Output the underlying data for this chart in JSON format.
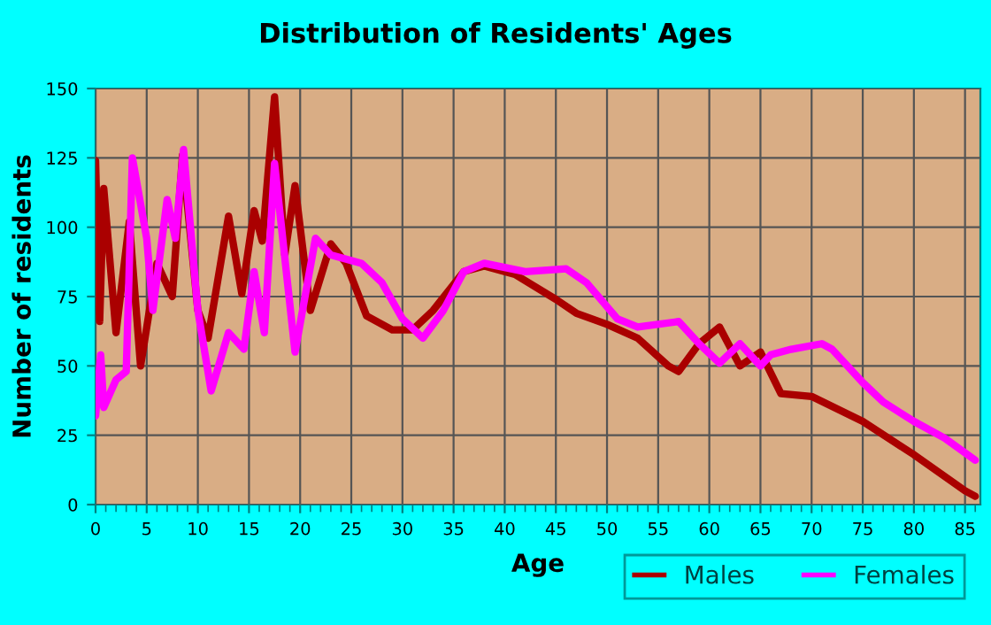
{
  "chart_data": {
    "type": "line",
    "title": "Distribution of Residents' Ages",
    "xlabel": "Age",
    "ylabel": "Number of residents",
    "series": [
      {
        "name": "Males",
        "color": "#aa0000",
        "x": [
          0,
          0.4,
          0.8,
          2,
          3.3,
          4.4,
          6,
          7.5,
          8.5,
          10,
          11,
          13,
          14.3,
          15.5,
          16.3,
          17.5,
          18.5,
          19.5,
          21,
          23,
          24.5,
          26.5,
          29,
          31,
          33,
          36,
          38,
          41,
          45,
          47,
          50,
          53,
          56,
          57,
          59,
          61,
          63,
          65,
          67,
          70,
          75,
          80,
          85,
          86
        ],
        "values": [
          124,
          66,
          114,
          62,
          102,
          50,
          87,
          75,
          126,
          70,
          60,
          104,
          76,
          106,
          95,
          147,
          90,
          115,
          70,
          94,
          87,
          68,
          63,
          63,
          70,
          84,
          86,
          83,
          74,
          69,
          65,
          60,
          50,
          48,
          58,
          64,
          50,
          55,
          40,
          39,
          30,
          18,
          5,
          3
        ]
      },
      {
        "name": "Females",
        "color": "#ff00ff",
        "x": [
          0,
          0.5,
          0.8,
          2,
          3,
          3.6,
          5,
          5.6,
          7,
          7.8,
          8.6,
          10,
          11.3,
          13,
          14.5,
          15.5,
          16.5,
          17.5,
          19.5,
          21.5,
          23,
          26,
          28,
          30,
          32,
          34,
          36,
          38,
          42,
          46,
          48,
          51,
          53,
          57,
          59,
          61,
          63,
          65,
          66,
          68,
          71,
          72,
          75,
          77,
          80,
          83,
          86
        ],
        "values": [
          32,
          54,
          35,
          45,
          48,
          125,
          96,
          70,
          110,
          96,
          128,
          70,
          41,
          62,
          56,
          84,
          62,
          123,
          55,
          96,
          90,
          87,
          80,
          67,
          60,
          70,
          84,
          87,
          84,
          85,
          80,
          67,
          64,
          66,
          58,
          51,
          58,
          50,
          54,
          56,
          58,
          56,
          44,
          37,
          30,
          24,
          16
        ]
      }
    ],
    "xlim": [
      0,
      86.5
    ],
    "ylim": [
      0,
      150
    ],
    "xticks": [
      0,
      5,
      10,
      15,
      20,
      25,
      30,
      35,
      40,
      45,
      50,
      55,
      60,
      65,
      70,
      75,
      80,
      85
    ],
    "yticks": [
      0,
      25,
      50,
      75,
      100,
      125,
      150
    ],
    "grid": true,
    "legend": "bottom right",
    "marker": "none",
    "line_style": "solid"
  }
}
